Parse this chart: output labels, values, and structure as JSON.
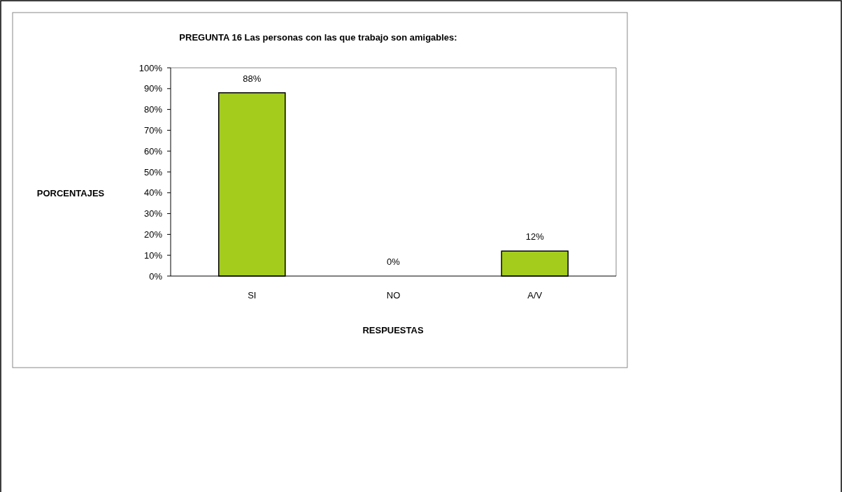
{
  "chart_data": {
    "type": "bar",
    "title": "PREGUNTA 16 Las personas con las que trabajo son amigables:",
    "xlabel": "RESPUESTAS",
    "ylabel": "PORCENTAJES",
    "categories": [
      "SI",
      "NO",
      "A/V"
    ],
    "values": [
      88,
      0,
      12
    ],
    "value_labels": [
      "88%",
      "0%",
      "12%"
    ],
    "color": "#a4cc1c",
    "ylim": [
      0,
      100
    ],
    "yticks": [
      {
        "value": 0,
        "label": "0%"
      },
      {
        "value": 10,
        "label": "10%"
      },
      {
        "value": 20,
        "label": "20%"
      },
      {
        "value": 30,
        "label": "30%"
      },
      {
        "value": 40,
        "label": "40%"
      },
      {
        "value": 50,
        "label": "50%"
      },
      {
        "value": 60,
        "label": "60%"
      },
      {
        "value": 70,
        "label": "70%"
      },
      {
        "value": 80,
        "label": "80%"
      },
      {
        "value": 90,
        "label": "90%"
      },
      {
        "value": 100,
        "label": "100%"
      }
    ],
    "grid": false
  }
}
